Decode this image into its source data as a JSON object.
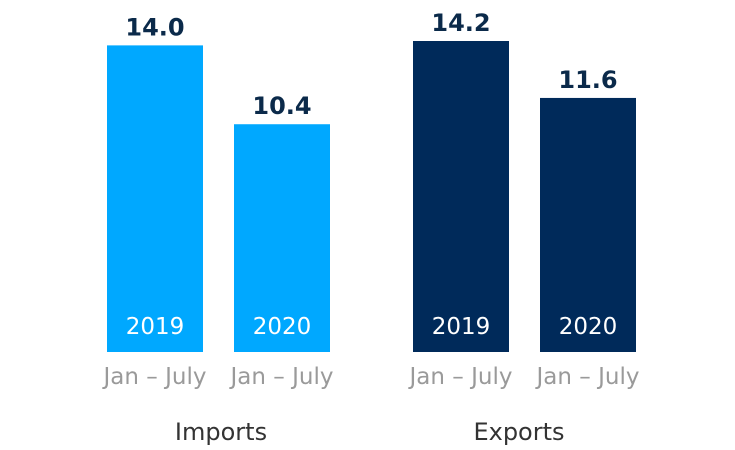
{
  "chart_data": {
    "type": "bar",
    "title": "",
    "xlabel": "",
    "ylabel": "",
    "ylim": [
      0,
      14.2
    ],
    "grid": false,
    "groups": [
      {
        "label": "Imports",
        "color": "#00a8ff",
        "bars": [
          {
            "year": "2019",
            "period": "Jan – July",
            "value": 14.0,
            "value_label": "14.0"
          },
          {
            "year": "2020",
            "period": "Jan – July",
            "value": 10.4,
            "value_label": "10.4"
          }
        ]
      },
      {
        "label": "Exports",
        "color": "#002a5a",
        "bars": [
          {
            "year": "2019",
            "period": "Jan – July",
            "value": 14.2,
            "value_label": "14.2"
          },
          {
            "year": "2020",
            "period": "Jan – July",
            "value": 11.6,
            "value_label": "11.6"
          }
        ]
      }
    ]
  }
}
